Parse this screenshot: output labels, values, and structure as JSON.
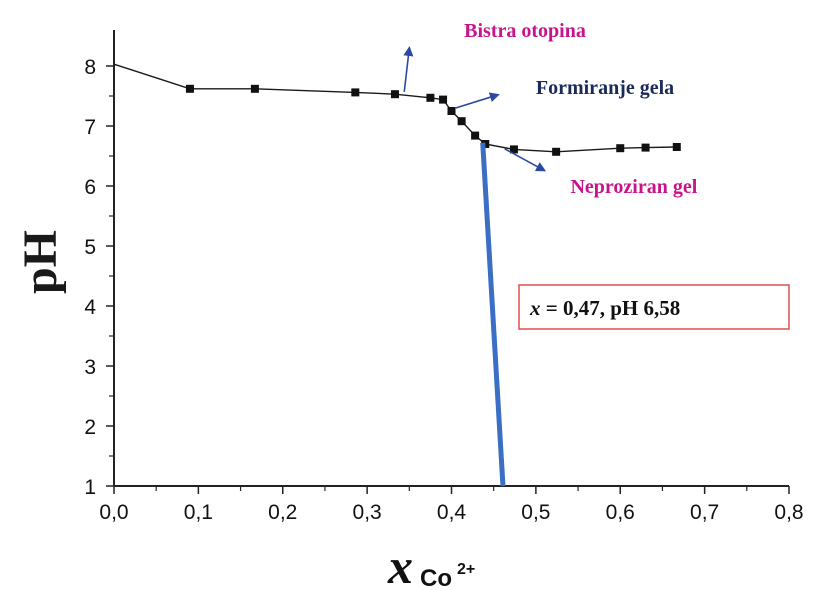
{
  "chart_data": {
    "type": "line",
    "ylabel": "pH",
    "xlabel": {
      "var": "x",
      "sub": "Co",
      "sup": "2+"
    },
    "xlim": [
      0.0,
      0.8
    ],
    "ylim": [
      1,
      8.6
    ],
    "xticks": [
      0.0,
      0.1,
      0.2,
      0.3,
      0.4,
      0.5,
      0.6,
      0.7,
      0.8
    ],
    "xtick_labels": [
      "0,0",
      "0,1",
      "0,2",
      "0,3",
      "0,4",
      "0,5",
      "0,6",
      "0,7",
      "0,8"
    ],
    "yticks": [
      1,
      2,
      3,
      4,
      5,
      6,
      7,
      8
    ],
    "ytick_labels": [
      "1",
      "2",
      "3",
      "4",
      "5",
      "6",
      "7",
      "8"
    ],
    "grid": false,
    "series": [
      {
        "x": [
          0.0,
          0.09,
          0.167,
          0.286,
          0.333,
          0.375,
          0.39,
          0.4,
          0.412,
          0.428,
          0.44,
          0.474,
          0.524,
          0.6,
          0.63,
          0.667
        ],
        "y": [
          8.03,
          7.62,
          7.62,
          7.56,
          7.53,
          7.47,
          7.44,
          7.25,
          7.08,
          6.84,
          6.7,
          6.61,
          6.57,
          6.63,
          6.64,
          6.65
        ],
        "markers": [
          false,
          true,
          true,
          true,
          true,
          true,
          true,
          true,
          true,
          true,
          true,
          true,
          true,
          true,
          true,
          true
        ],
        "color": "#1a1a1a"
      }
    ],
    "vertical_line": {
      "x_top": 0.437,
      "y_top": 6.72,
      "x_bottom": 0.461,
      "y_bottom": 1.0,
      "color": "#3a6fc4"
    },
    "annotations": [
      {
        "text": "Bistra otopina",
        "color": "#c8148c",
        "x": 0.415,
        "y": 8.6,
        "arrow_from": [
          0.344,
          7.57
        ],
        "arrow_to": [
          0.35,
          8.3
        ]
      },
      {
        "text": "Formiranje gela",
        "color": "#1a2a5a",
        "x": 0.5,
        "y": 7.65,
        "arrow_from": [
          0.405,
          7.3
        ],
        "arrow_to": [
          0.455,
          7.52
        ]
      },
      {
        "text": "Neproziran gel",
        "color": "#c8148c",
        "x": 0.541,
        "y": 6.0,
        "arrow_from": [
          0.463,
          6.62
        ],
        "arrow_to": [
          0.51,
          6.26
        ]
      }
    ],
    "result_box": {
      "var": "x",
      "text": " = 0,47, pH 6,58",
      "border_color": "#e05050"
    }
  }
}
